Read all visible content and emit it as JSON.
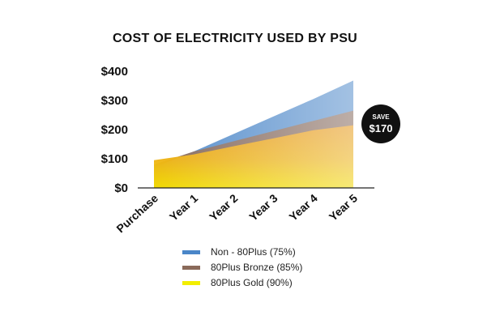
{
  "chart_data": {
    "type": "area",
    "title": "COST OF ELECTRICITY USED BY PSU",
    "categories": [
      "Purchase",
      "Year 1",
      "Year 2",
      "Year 3",
      "Year 4",
      "Year 5"
    ],
    "ylim": [
      0,
      400
    ],
    "yticks": [
      0,
      100,
      200,
      300,
      400
    ],
    "ytick_labels": [
      "$0",
      "$100",
      "$200",
      "$300",
      "$400"
    ],
    "grid": false,
    "legend_position": "bottom",
    "series": [
      {
        "name": "Non - 80Plus (75%)",
        "color": "#4a86c8",
        "values": [
          70,
          125,
          185,
          245,
          305,
          368
        ]
      },
      {
        "name": "80Plus Bronze (85%)",
        "color": "#8a6a5a",
        "values": [
          80,
          125,
          160,
          195,
          230,
          265
        ]
      },
      {
        "name": "80Plus Gold (90%)",
        "color": "#f2dd00",
        "values": [
          95,
          115,
          143,
          170,
          198,
          215
        ]
      }
    ],
    "annotation": {
      "line1": "SAVE",
      "line2": "$170"
    }
  }
}
